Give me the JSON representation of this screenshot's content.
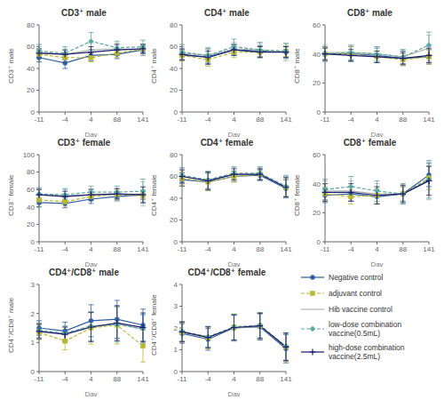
{
  "chart_data": [
    {
      "type": "line",
      "title": "CD3⁺ male",
      "x_label": "Day",
      "y_label": "CD3⁺ male",
      "categories": [
        "-11",
        "-4",
        "4",
        "88",
        "141"
      ],
      "ylim": [
        0,
        80
      ],
      "yticks": [
        0,
        20,
        40,
        60,
        80
      ],
      "grid": false,
      "series": [
        {
          "name": "Negative control",
          "color": "#2e5fa3",
          "line_style": "solid",
          "marker": "circle",
          "values": [
            50,
            45,
            52,
            53,
            57
          ],
          "errors": [
            4,
            5,
            5,
            4,
            5
          ]
        },
        {
          "name": "adjuvant control",
          "color": "#b8b832",
          "line_style": "dashed",
          "marker": "square",
          "values": [
            53,
            50,
            50,
            54,
            58
          ],
          "errors": [
            4,
            4,
            4,
            4,
            4
          ]
        },
        {
          "name": "Hib vaccine control",
          "color": "#b0b8b0",
          "line_style": "solid",
          "marker": "none",
          "values": [
            55,
            53,
            57,
            58,
            57
          ],
          "errors": [
            5,
            5,
            6,
            5,
            5
          ]
        },
        {
          "name": "low-dose combination\nvaccine(0.5mL)",
          "color": "#5ba8a0",
          "line_style": "dashed",
          "marker": "diamond",
          "values": [
            56,
            54,
            65,
            59,
            60
          ],
          "errors": [
            6,
            6,
            8,
            6,
            6
          ]
        },
        {
          "name": "high-dose combination\nvaccine(2.5mL)",
          "color": "#1a1a6e",
          "line_style": "solid",
          "marker": "plus",
          "values": [
            54,
            53,
            55,
            57,
            58
          ],
          "errors": [
            4,
            4,
            5,
            5,
            4
          ]
        }
      ]
    },
    {
      "type": "line",
      "title": "CD4⁺ male",
      "x_label": "Day",
      "y_label": "CD4⁺ male",
      "categories": [
        "-11",
        "-4",
        "4",
        "88",
        "141"
      ],
      "ylim": [
        0,
        80
      ],
      "yticks": [
        0,
        20,
        40,
        60,
        80
      ],
      "grid": false,
      "series": [
        {
          "name": "Negative control",
          "color": "#2e5fa3",
          "line_style": "solid",
          "marker": "circle",
          "values": [
            52,
            51,
            57,
            56,
            55
          ],
          "errors": [
            5,
            7,
            5,
            5,
            5
          ]
        },
        {
          "name": "adjuvant control",
          "color": "#b8b832",
          "line_style": "dashed",
          "marker": "square",
          "values": [
            52,
            48,
            55,
            55,
            56
          ],
          "errors": [
            5,
            6,
            5,
            5,
            5
          ]
        },
        {
          "name": "Hib vaccine control",
          "color": "#b0b8b0",
          "line_style": "solid",
          "marker": "none",
          "values": [
            54,
            52,
            58,
            57,
            55
          ],
          "errors": [
            6,
            6,
            6,
            6,
            8
          ]
        },
        {
          "name": "low-dose combination\nvaccine(0.5mL)",
          "color": "#5ba8a0",
          "line_style": "dashed",
          "marker": "diamond",
          "values": [
            55,
            52,
            60,
            57,
            56
          ],
          "errors": [
            7,
            7,
            7,
            7,
            7
          ]
        },
        {
          "name": "high-dose combination\nvaccine(2.5mL)",
          "color": "#1a1a6e",
          "line_style": "solid",
          "marker": "plus",
          "values": [
            53,
            50,
            57,
            55,
            55
          ],
          "errors": [
            5,
            6,
            5,
            5,
            5
          ]
        }
      ]
    },
    {
      "type": "line",
      "title": "CD8⁺ male",
      "x_label": "Day",
      "y_label": "CD8⁺ male",
      "categories": [
        "-11",
        "-4",
        "4",
        "88",
        "141"
      ],
      "ylim": [
        0,
        60
      ],
      "yticks": [
        0,
        20,
        40,
        60
      ],
      "grid": false,
      "series": [
        {
          "name": "Negative control",
          "color": "#2e5fa3",
          "line_style": "solid",
          "marker": "circle",
          "values": [
            40,
            40,
            39,
            37,
            38
          ],
          "errors": [
            5,
            5,
            5,
            5,
            5
          ]
        },
        {
          "name": "adjuvant control",
          "color": "#b8b832",
          "line_style": "dashed",
          "marker": "square",
          "values": [
            40,
            40,
            38,
            36,
            38
          ],
          "errors": [
            4,
            5,
            4,
            4,
            5
          ]
        },
        {
          "name": "Hib vaccine control",
          "color": "#b0b8b0",
          "line_style": "solid",
          "marker": "none",
          "values": [
            41,
            41,
            40,
            38,
            44
          ],
          "errors": [
            5,
            5,
            5,
            5,
            9
          ]
        },
        {
          "name": "low-dose combination\nvaccine(0.5mL)",
          "color": "#5ba8a0",
          "line_style": "dashed",
          "marker": "diamond",
          "values": [
            40,
            41,
            40,
            38,
            46
          ],
          "errors": [
            5,
            5,
            5,
            5,
            9
          ]
        },
        {
          "name": "high-dose combination\nvaccine(2.5mL)",
          "color": "#1a1a6e",
          "line_style": "solid",
          "marker": "plus",
          "values": [
            40,
            39,
            38,
            37,
            39
          ],
          "errors": [
            4,
            4,
            4,
            4,
            5
          ]
        }
      ]
    },
    {
      "type": "line",
      "title": "CD3⁺ female",
      "x_label": "Day",
      "y_label": "CD3⁺ female",
      "categories": [
        "-11",
        "-4",
        "4",
        "88",
        "141"
      ],
      "ylim": [
        0,
        100
      ],
      "yticks": [
        0,
        20,
        40,
        60,
        80,
        100
      ],
      "grid": false,
      "series": [
        {
          "name": "Negative control",
          "color": "#2e5fa3",
          "line_style": "solid",
          "marker": "circle",
          "values": [
            45,
            44,
            49,
            52,
            54
          ],
          "errors": [
            5,
            5,
            5,
            5,
            5
          ]
        },
        {
          "name": "adjuvant control",
          "color": "#b8b832",
          "line_style": "dashed",
          "marker": "square",
          "values": [
            48,
            46,
            52,
            54,
            53
          ],
          "errors": [
            5,
            5,
            5,
            5,
            5
          ]
        },
        {
          "name": "Hib vaccine control",
          "color": "#b0b8b0",
          "line_style": "solid",
          "marker": "none",
          "values": [
            54,
            53,
            54,
            54,
            55
          ],
          "errors": [
            7,
            7,
            7,
            7,
            14
          ]
        },
        {
          "name": "low-dose combination\nvaccine(0.5mL)",
          "color": "#5ba8a0",
          "line_style": "dashed",
          "marker": "diamond",
          "values": [
            55,
            54,
            57,
            57,
            58
          ],
          "errors": [
            7,
            7,
            7,
            7,
            14
          ]
        },
        {
          "name": "high-dose combination\nvaccine(2.5mL)",
          "color": "#1a1a6e",
          "line_style": "solid",
          "marker": "plus",
          "values": [
            54,
            52,
            54,
            55,
            54
          ],
          "errors": [
            6,
            6,
            6,
            6,
            9
          ]
        }
      ]
    },
    {
      "type": "line",
      "title": "CD4⁺ female",
      "x_label": "Day",
      "y_label": "CD4⁺ female",
      "categories": [
        "-11",
        "-4",
        "4",
        "88",
        "141"
      ],
      "ylim": [
        0,
        80
      ],
      "yticks": [
        0,
        20,
        40,
        60,
        80
      ],
      "grid": false,
      "series": [
        {
          "name": "Negative control",
          "color": "#2e5fa3",
          "line_style": "solid",
          "marker": "circle",
          "values": [
            57,
            55,
            60,
            61,
            49
          ],
          "errors": [
            6,
            8,
            5,
            5,
            8
          ]
        },
        {
          "name": "adjuvant control",
          "color": "#b8b832",
          "line_style": "dashed",
          "marker": "square",
          "values": [
            58,
            55,
            60,
            62,
            50
          ],
          "errors": [
            6,
            8,
            5,
            5,
            8
          ]
        },
        {
          "name": "Hib vaccine control",
          "color": "#b0b8b0",
          "line_style": "solid",
          "marker": "none",
          "values": [
            60,
            56,
            62,
            62,
            50
          ],
          "errors": [
            7,
            8,
            6,
            6,
            10
          ]
        },
        {
          "name": "low-dose combination\nvaccine(0.5mL)",
          "color": "#5ba8a0",
          "line_style": "dashed",
          "marker": "diamond",
          "values": [
            61,
            57,
            63,
            63,
            51
          ],
          "errors": [
            7,
            8,
            6,
            6,
            10
          ]
        },
        {
          "name": "high-dose combination\nvaccine(2.5mL)",
          "color": "#1a1a6e",
          "line_style": "solid",
          "marker": "plus",
          "values": [
            60,
            56,
            62,
            62,
            50
          ],
          "errors": [
            6,
            8,
            5,
            5,
            9
          ]
        }
      ]
    },
    {
      "type": "line",
      "title": "CD8⁺ female",
      "x_label": "Day",
      "y_label": "CD8⁺ female",
      "categories": [
        "-11",
        "-4",
        "4",
        "88",
        "141"
      ],
      "ylim": [
        0,
        60
      ],
      "yticks": [
        0,
        20,
        40,
        60
      ],
      "grid": false,
      "series": [
        {
          "name": "Negative control",
          "color": "#2e5fa3",
          "line_style": "solid",
          "marker": "circle",
          "values": [
            32,
            33,
            31,
            33,
            46
          ],
          "errors": [
            5,
            5,
            5,
            5,
            8
          ]
        },
        {
          "name": "adjuvant control",
          "color": "#b8b832",
          "line_style": "dashed",
          "marker": "square",
          "values": [
            33,
            31,
            32,
            33,
            44
          ],
          "errors": [
            5,
            5,
            5,
            5,
            8
          ]
        },
        {
          "name": "Hib vaccine control",
          "color": "#b0b8b0",
          "line_style": "solid",
          "marker": "none",
          "values": [
            35,
            35,
            33,
            33,
            42
          ],
          "errors": [
            7,
            7,
            7,
            7,
            13
          ]
        },
        {
          "name": "low-dose combination\nvaccine(0.5mL)",
          "color": "#5ba8a0",
          "line_style": "dashed",
          "marker": "diamond",
          "values": [
            36,
            38,
            35,
            33,
            43
          ],
          "errors": [
            7,
            7,
            7,
            7,
            13
          ]
        },
        {
          "name": "high-dose combination\nvaccine(2.5mL)",
          "color": "#1a1a6e",
          "line_style": "solid",
          "marker": "plus",
          "values": [
            34,
            34,
            32,
            33,
            42
          ],
          "errors": [
            6,
            6,
            6,
            6,
            10
          ]
        }
      ]
    },
    {
      "type": "line",
      "title": "CD4⁺/CD8⁺ male",
      "x_label": "Day",
      "y_label": "CD4⁺/CD8⁺ male",
      "categories": [
        "-11",
        "-4",
        "4",
        "88",
        "141"
      ],
      "ylim": [
        0,
        3
      ],
      "yticks": [
        0,
        1,
        2,
        3
      ],
      "grid": false,
      "series": [
        {
          "name": "Negative control",
          "color": "#2e5fa3",
          "line_style": "solid",
          "marker": "circle",
          "values": [
            1.5,
            1.4,
            1.75,
            1.8,
            1.6
          ],
          "errors": [
            0.25,
            0.3,
            0.55,
            0.65,
            0.55
          ]
        },
        {
          "name": "adjuvant control",
          "color": "#b8b832",
          "line_style": "dashed",
          "marker": "square",
          "values": [
            1.35,
            1.05,
            1.5,
            1.6,
            0.88
          ],
          "errors": [
            0.25,
            0.3,
            0.55,
            0.65,
            0.55
          ]
        },
        {
          "name": "Hib vaccine control",
          "color": "#b0b8b0",
          "line_style": "solid",
          "marker": "none",
          "values": [
            1.4,
            1.3,
            1.55,
            1.65,
            1.45
          ],
          "errors": [
            0.25,
            0.25,
            0.5,
            0.6,
            0.5
          ]
        },
        {
          "name": "low-dose combination\nvaccine(0.5mL)",
          "color": "#5ba8a0",
          "line_style": "dashed",
          "marker": "diamond",
          "values": [
            1.42,
            1.32,
            1.57,
            1.62,
            1.47
          ],
          "errors": [
            0.25,
            0.25,
            0.5,
            0.6,
            0.5
          ]
        },
        {
          "name": "high-dose combination\nvaccine(2.5mL)",
          "color": "#1a1a6e",
          "line_style": "solid",
          "marker": "plus",
          "values": [
            1.38,
            1.28,
            1.53,
            1.67,
            1.52
          ],
          "errors": [
            0.25,
            0.25,
            0.5,
            0.6,
            0.5
          ]
        }
      ]
    },
    {
      "type": "line",
      "title": "CD4⁺/CD8⁺ female",
      "x_label": "Day",
      "y_label": "CD4⁺/CD8⁺ female",
      "categories": [
        "-11",
        "-4",
        "4",
        "88",
        "141"
      ],
      "ylim": [
        0,
        4
      ],
      "yticks": [
        0,
        1,
        2,
        3,
        4
      ],
      "grid": false,
      "series": [
        {
          "name": "Negative control",
          "color": "#2e5fa3",
          "line_style": "solid",
          "marker": "circle",
          "values": [
            1.75,
            1.48,
            2.0,
            2.05,
            1.05
          ],
          "errors": [
            0.45,
            0.5,
            0.6,
            0.6,
            0.65
          ]
        },
        {
          "name": "adjuvant control",
          "color": "#b8b832",
          "line_style": "dashed",
          "marker": "square",
          "values": [
            1.8,
            1.55,
            2.05,
            2.1,
            1.12
          ],
          "errors": [
            0.45,
            0.5,
            0.6,
            0.6,
            0.65
          ]
        },
        {
          "name": "Hib vaccine control",
          "color": "#b0b8b0",
          "line_style": "solid",
          "marker": "none",
          "values": [
            1.83,
            1.58,
            2.0,
            2.08,
            1.15
          ],
          "errors": [
            0.45,
            0.48,
            0.58,
            0.58,
            0.63
          ]
        },
        {
          "name": "low-dose combination\nvaccine(0.5mL)",
          "color": "#5ba8a0",
          "line_style": "dashed",
          "marker": "diamond",
          "values": [
            1.85,
            1.6,
            2.05,
            2.13,
            1.15
          ],
          "errors": [
            0.45,
            0.48,
            0.58,
            0.58,
            0.63
          ]
        },
        {
          "name": "high-dose combination\nvaccine(2.5mL)",
          "color": "#1a1a6e",
          "line_style": "solid",
          "marker": "plus",
          "values": [
            1.82,
            1.57,
            2.02,
            2.1,
            1.13
          ],
          "errors": [
            0.45,
            0.48,
            0.58,
            0.58,
            0.63
          ]
        }
      ]
    }
  ]
}
